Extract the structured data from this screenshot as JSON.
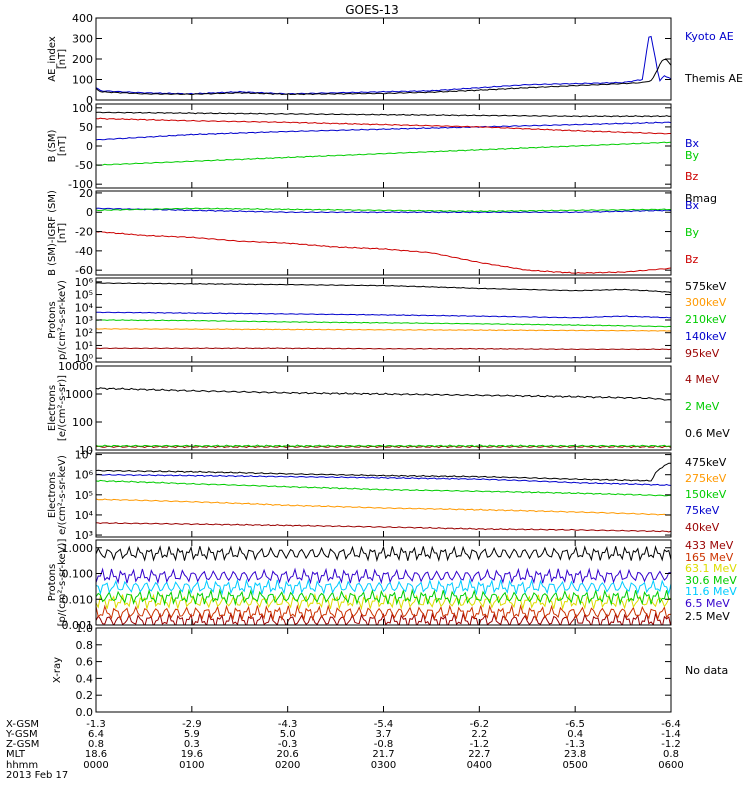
{
  "title": "GOES-13",
  "chart_data": [
    {
      "type": "line",
      "ylabel": [
        "AE_index",
        "[nT]"
      ],
      "ylim": [
        0,
        400
      ],
      "yticks": [
        {
          "v": 0,
          "t": "0"
        },
        {
          "v": 100,
          "t": "100"
        },
        {
          "v": 200,
          "t": "200"
        },
        {
          "v": 300,
          "t": "300"
        },
        {
          "v": 400,
          "t": "400"
        }
      ],
      "series": [
        {
          "name": "Kyoto AE",
          "color": "#0000cc",
          "x": [
            0,
            0.05,
            0.5,
            1.0,
            1.5,
            2.0,
            2.5,
            3.0,
            3.5,
            4.0,
            4.5,
            5.0,
            5.5,
            5.7,
            5.78,
            5.83,
            5.88,
            5.92,
            5.96,
            6.0
          ],
          "y": [
            60,
            45,
            35,
            30,
            40,
            30,
            35,
            40,
            45,
            60,
            75,
            80,
            85,
            100,
            340,
            220,
            90,
            120,
            110,
            105
          ]
        },
        {
          "name": "Themis AE",
          "color": "#000000",
          "x": [
            0,
            0.05,
            0.5,
            1.0,
            1.5,
            2.0,
            2.5,
            3.0,
            3.5,
            4.0,
            4.5,
            5.0,
            5.5,
            5.7,
            5.8,
            5.85,
            5.9,
            5.95,
            6.0
          ],
          "y": [
            55,
            40,
            30,
            28,
            35,
            28,
            30,
            32,
            38,
            48,
            60,
            70,
            80,
            85,
            95,
            140,
            190,
            200,
            170
          ]
        }
      ]
    },
    {
      "type": "line",
      "ylabel": [
        "B (SM)",
        "[nT]"
      ],
      "ylim": [
        -110,
        110
      ],
      "yticks": [
        {
          "v": -100,
          "t": "-100"
        },
        {
          "v": -50,
          "t": "-50"
        },
        {
          "v": 0,
          "t": "0"
        },
        {
          "v": 50,
          "t": "50"
        },
        {
          "v": 100,
          "t": "100"
        }
      ],
      "series": [
        {
          "name": "Bx",
          "color": "#0000cc",
          "x": [
            0,
            1,
            2,
            3,
            4,
            5,
            6
          ],
          "y": [
            16,
            30,
            38,
            44,
            50,
            56,
            62
          ]
        },
        {
          "name": "By",
          "color": "#00cc00",
          "x": [
            0,
            1,
            2,
            3,
            4,
            5,
            6
          ],
          "y": [
            -50,
            -40,
            -30,
            -20,
            -10,
            0,
            10
          ]
        },
        {
          "name": "Bz",
          "color": "#cc0000",
          "x": [
            0,
            1,
            2,
            3,
            4,
            5,
            6
          ],
          "y": [
            72,
            66,
            62,
            56,
            50,
            40,
            32
          ]
        },
        {
          "name": "Bmag",
          "color": "#000000",
          "x": [
            0,
            1,
            2,
            3,
            4,
            5,
            6
          ],
          "y": [
            88,
            86,
            84,
            82,
            80,
            78,
            78
          ]
        }
      ]
    },
    {
      "type": "line",
      "ylabel": [
        "B (SM)-IGRF (SM)",
        "[nT]"
      ],
      "ylim": [
        -65,
        22
      ],
      "yticks": [
        {
          "v": -60,
          "t": "-60"
        },
        {
          "v": -40,
          "t": "-40"
        },
        {
          "v": -20,
          "t": "-20"
        },
        {
          "v": 0,
          "t": "0"
        },
        {
          "v": 20,
          "t": "20"
        }
      ],
      "series": [
        {
          "name": "Bx",
          "color": "#0000cc",
          "x": [
            0,
            1,
            2,
            3,
            4,
            5,
            6
          ],
          "y": [
            4,
            2,
            0,
            0,
            0,
            0,
            2
          ]
        },
        {
          "name": "By",
          "color": "#00cc00",
          "x": [
            0,
            1,
            2,
            3,
            4,
            5,
            6
          ],
          "y": [
            2,
            4,
            3,
            2,
            1,
            2,
            3
          ]
        },
        {
          "name": "Bz",
          "color": "#cc0000",
          "x": [
            0,
            0.5,
            1,
            1.5,
            2,
            2.5,
            3,
            3.5,
            4,
            4.5,
            5,
            5.5,
            6
          ],
          "y": [
            -20,
            -24,
            -26,
            -30,
            -32,
            -36,
            -38,
            -42,
            -52,
            -60,
            -63,
            -62,
            -58
          ]
        }
      ]
    },
    {
      "type": "line",
      "scale": "log",
      "ylabel": [
        "Protons",
        "p/(cm²-s-sr-keV)"
      ],
      "ylim": [
        0.5,
        2000000
      ],
      "yticks": [
        {
          "v": 1,
          "t": "10⁰"
        },
        {
          "v": 10,
          "t": "10¹"
        },
        {
          "v": 100,
          "t": "10²"
        },
        {
          "v": 1000,
          "t": "10³"
        },
        {
          "v": 10000,
          "t": "10⁴"
        },
        {
          "v": 100000,
          "t": "10⁵"
        },
        {
          "v": 1000000,
          "t": "10⁶"
        }
      ],
      "series": [
        {
          "name": "575keV",
          "color": "#000000",
          "x": [
            0,
            1,
            2,
            3,
            4,
            5,
            5.5,
            6
          ],
          "y": [
            800000,
            700000,
            600000,
            500000,
            300000,
            200000,
            250000,
            150000
          ]
        },
        {
          "name": "300keV",
          "color": "#ff9900",
          "x": [
            0,
            1,
            2,
            3,
            4,
            5,
            6
          ],
          "y": [
            200,
            190,
            180,
            170,
            160,
            150,
            140
          ]
        },
        {
          "name": "210keV",
          "color": "#00cc00",
          "x": [
            0,
            1,
            2,
            3,
            4,
            5,
            6
          ],
          "y": [
            1000,
            900,
            700,
            600,
            500,
            400,
            300
          ]
        },
        {
          "name": "140keV",
          "color": "#0000cc",
          "x": [
            0,
            1,
            2,
            3,
            4,
            5,
            5.5,
            6
          ],
          "y": [
            4000,
            3500,
            3000,
            2500,
            2000,
            1500,
            2000,
            1500
          ]
        },
        {
          "name": "95keV",
          "color": "#990000",
          "x": [
            0,
            1,
            2,
            3,
            4,
            5,
            6
          ],
          "y": [
            6,
            6,
            6,
            5.5,
            5.5,
            5,
            5
          ]
        }
      ]
    },
    {
      "type": "line",
      "scale": "log",
      "ylabel": [
        "Electrons",
        "[e/(cm²-s-sr)]"
      ],
      "ylim": [
        10,
        10000
      ],
      "yticks": [
        {
          "v": 10,
          "t": "10"
        },
        {
          "v": 100,
          "t": "100"
        },
        {
          "v": 1000,
          "t": "1000"
        },
        {
          "v": 10000,
          "t": "10000"
        }
      ],
      "series": [
        {
          "name": "4 MeV",
          "color": "#990000",
          "x": [
            0,
            1,
            2,
            3,
            4,
            5,
            6
          ],
          "y": [
            13,
            13,
            13,
            13,
            13,
            13,
            13
          ]
        },
        {
          "name": "2 MeV",
          "color": "#00cc00",
          "x": [
            0,
            1,
            2,
            3,
            4,
            5,
            6
          ],
          "y": [
            14,
            14,
            14,
            14,
            14,
            14,
            14
          ]
        },
        {
          "name": "0.6 MeV",
          "color": "#000000",
          "x": [
            0,
            1,
            2,
            3,
            4,
            5,
            5.8,
            6
          ],
          "y": [
            1600,
            1300,
            1100,
            1000,
            900,
            800,
            700,
            600
          ]
        }
      ]
    },
    {
      "type": "line",
      "scale": "log",
      "ylabel": [
        "Electrons",
        "e/(cm²-s-sr-keV)"
      ],
      "ylim": [
        800,
        12000000
      ],
      "yticks": [
        {
          "v": 1000,
          "t": "10³"
        },
        {
          "v": 10000,
          "t": "10⁴"
        },
        {
          "v": 100000,
          "t": "10⁵"
        },
        {
          "v": 1000000,
          "t": "10⁶"
        },
        {
          "v": 10000000,
          "t": "10⁷"
        }
      ],
      "series": [
        {
          "name": "475keV",
          "color": "#000000",
          "x": [
            0,
            1,
            2,
            3,
            4,
            5,
            5.8,
            6
          ],
          "y": [
            1600000,
            1400000,
            1100000,
            900000,
            800000,
            600000,
            500000,
            4000000
          ]
        },
        {
          "name": "275keV",
          "color": "#ff9900",
          "x": [
            0,
            1,
            2,
            3,
            4,
            5,
            6
          ],
          "y": [
            60000,
            45000,
            30000,
            22000,
            18000,
            14000,
            10000
          ]
        },
        {
          "name": "150keV",
          "color": "#00cc00",
          "x": [
            0,
            1,
            2,
            3,
            4,
            5,
            6
          ],
          "y": [
            500000,
            350000,
            250000,
            180000,
            150000,
            120000,
            90000
          ]
        },
        {
          "name": "75keV",
          "color": "#0000cc",
          "x": [
            0,
            1,
            2,
            3,
            4,
            5,
            6
          ],
          "y": [
            1000000,
            900000,
            800000,
            700000,
            600000,
            400000,
            300000
          ]
        },
        {
          "name": "40keV",
          "color": "#990000",
          "x": [
            0,
            1,
            2,
            3,
            4,
            5,
            6
          ],
          "y": [
            4000,
            3500,
            3000,
            2500,
            2000,
            1800,
            1500
          ]
        }
      ]
    },
    {
      "type": "line",
      "scale": "log",
      "ylabel": [
        "Protons",
        "[p/(cm²-s-sr-keV)]"
      ],
      "ylim": [
        0.001,
        2
      ],
      "yticks": [
        {
          "v": 0.001,
          "t": "0.001"
        },
        {
          "v": 0.01,
          "t": "0.010"
        },
        {
          "v": 0.1,
          "t": "0.100"
        },
        {
          "v": 1,
          "t": "1.000"
        }
      ],
      "series": [
        {
          "name": "433 MeV",
          "color": "#990000",
          "x": [
            0,
            6
          ],
          "y": [
            0.0015,
            0.0015
          ]
        },
        {
          "name": "165 MeV",
          "color": "#cc3300",
          "x": [
            0,
            6
          ],
          "y": [
            0.003,
            0.003
          ]
        },
        {
          "name": "63.1 MeV",
          "color": "#dddd00",
          "x": [
            0,
            6
          ],
          "y": [
            0.008,
            0.008
          ]
        },
        {
          "name": "30.6 MeV",
          "color": "#00cc00",
          "x": [
            0,
            6
          ],
          "y": [
            0.012,
            0.012
          ]
        },
        {
          "name": "11.6 MeV",
          "color": "#00ccff",
          "x": [
            0,
            6
          ],
          "y": [
            0.03,
            0.03
          ]
        },
        {
          "name": "6.5 MeV",
          "color": "#3300cc",
          "x": [
            0,
            6
          ],
          "y": [
            0.08,
            0.08
          ]
        },
        {
          "name": "2.5 MeV",
          "color": "#000000",
          "x": [
            0,
            6
          ],
          "y": [
            0.6,
            0.6
          ]
        }
      ]
    },
    {
      "type": "line",
      "ylabel": [
        "X-ray"
      ],
      "ylim": [
        0,
        1
      ],
      "yticks": [
        {
          "v": 0,
          "t": "0.0"
        },
        {
          "v": 0.2,
          "t": "0.2"
        },
        {
          "v": 0.4,
          "t": "0.4"
        },
        {
          "v": 0.6,
          "t": "0.6"
        },
        {
          "v": 0.8,
          "t": "0.8"
        },
        {
          "v": 1.0,
          "t": "1.0"
        }
      ],
      "note": "No data",
      "series": []
    }
  ],
  "x_axis": {
    "xlim": [
      0,
      6
    ],
    "rows": [
      {
        "label": "X-GSM",
        "values": [
          "-1.3",
          "-2.9",
          "-4.3",
          "-5.4",
          "-6.2",
          "-6.5",
          "-6.4"
        ]
      },
      {
        "label": "Y-GSM",
        "values": [
          "6.4",
          "5.9",
          "5.0",
          "3.7",
          "2.2",
          "0.4",
          "-1.4"
        ]
      },
      {
        "label": "Z-GSM",
        "values": [
          "0.8",
          "0.3",
          "-0.3",
          "-0.8",
          "-1.2",
          "-1.3",
          "-1.2"
        ]
      },
      {
        "label": "MLT",
        "values": [
          "18.6",
          "19.6",
          "20.6",
          "21.7",
          "22.7",
          "23.8",
          "0.8"
        ]
      },
      {
        "label": "hhmm",
        "values": [
          "0000",
          "0100",
          "0200",
          "0300",
          "0400",
          "0500",
          "0600"
        ]
      }
    ],
    "date": "2013 Feb 17"
  }
}
